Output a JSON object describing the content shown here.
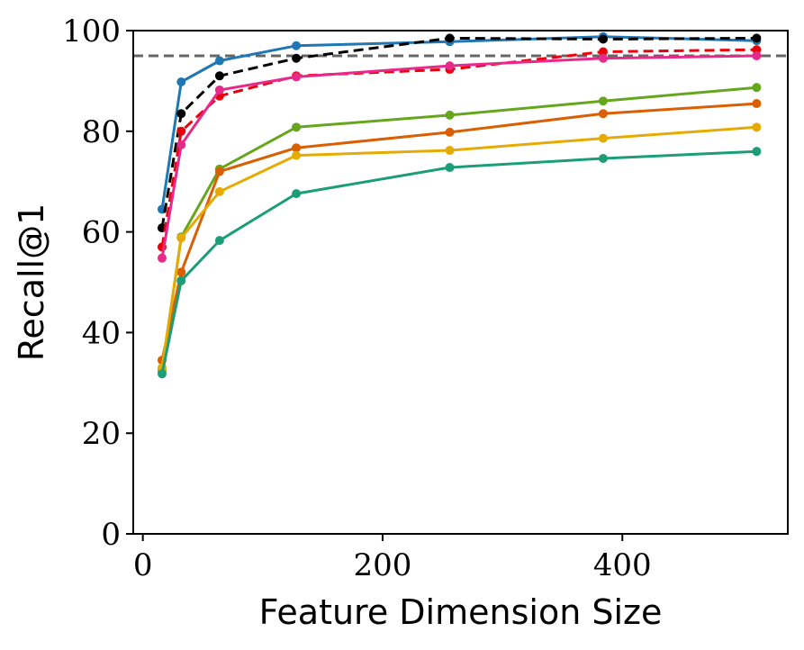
{
  "chart_data": {
    "type": "line",
    "title": "",
    "xlabel": "Feature Dimension Size",
    "ylabel": "Recall@1",
    "xlim": [
      -8,
      538
    ],
    "ylim": [
      0,
      100
    ],
    "xticks": [
      0,
      200,
      400
    ],
    "yticks": [
      0,
      20,
      40,
      60,
      80,
      100
    ],
    "grid": false,
    "legend": "none",
    "x": [
      16,
      32,
      64,
      128,
      256,
      384,
      512
    ],
    "reference_line": {
      "y": 95,
      "color": "#666666",
      "style": "dashed"
    },
    "series": [
      {
        "color": "#1f77b4",
        "dashed": false,
        "values": [
          64.5,
          89.8,
          94.0,
          97.0,
          97.8,
          98.8,
          98.0
        ]
      },
      {
        "color": "#000000",
        "dashed": true,
        "values": [
          60.8,
          83.5,
          91.0,
          94.5,
          98.5,
          98.3,
          98.5
        ]
      },
      {
        "color": "#e8000b",
        "dashed": true,
        "values": [
          57.0,
          80.0,
          87.0,
          91.0,
          92.3,
          95.8,
          96.2
        ]
      },
      {
        "color": "#e7298a",
        "dashed": false,
        "values": [
          54.8,
          77.3,
          88.2,
          90.8,
          93.0,
          94.5,
          95.0
        ]
      },
      {
        "color": "#66a61e",
        "dashed": false,
        "values": [
          32.5,
          59.0,
          72.5,
          80.8,
          83.2,
          86.0,
          88.7
        ]
      },
      {
        "color": "#d95f02",
        "dashed": false,
        "values": [
          34.5,
          52.0,
          72.0,
          76.7,
          79.8,
          83.5,
          85.5
        ]
      },
      {
        "color": "#e6ab02",
        "dashed": false,
        "values": [
          33.0,
          58.8,
          68.0,
          75.2,
          76.2,
          78.6,
          80.8
        ]
      },
      {
        "color": "#1b9e77",
        "dashed": false,
        "values": [
          31.8,
          50.3,
          58.3,
          67.6,
          72.8,
          74.6,
          76.0
        ]
      }
    ]
  }
}
